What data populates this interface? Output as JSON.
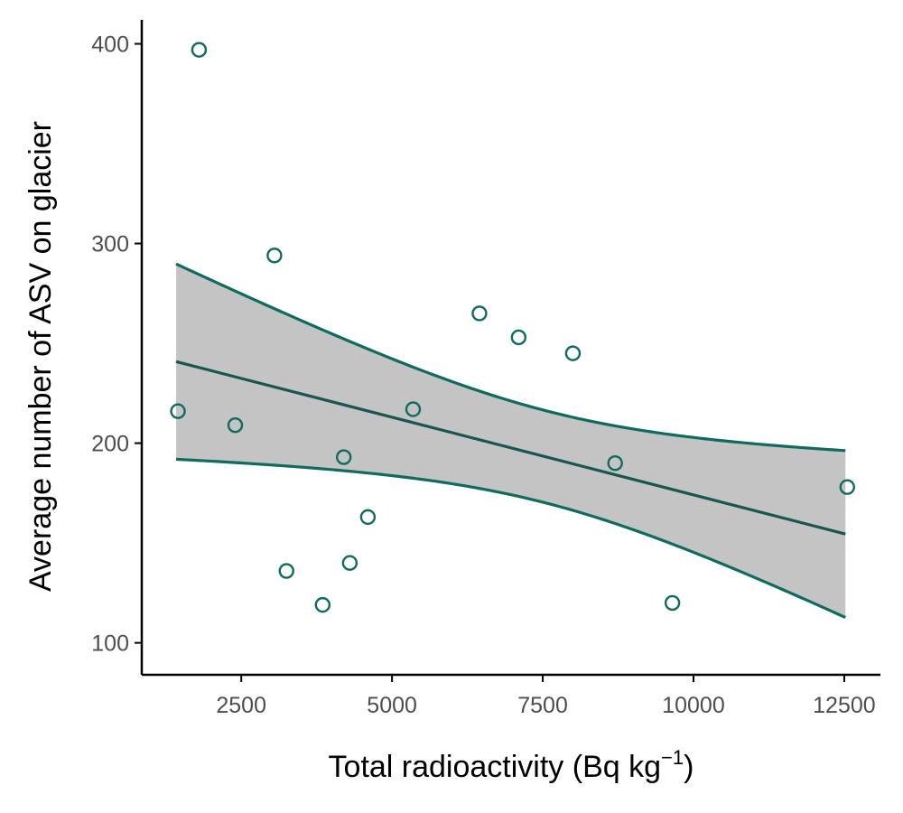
{
  "chart_data": {
    "type": "scatter",
    "xlabel_text": "Total radioactivity (Bq kg",
    "xlabel_sup": "−1",
    "xlabel_close": ")",
    "ylabel": "Average number of ASV on glacier",
    "xlim": [
      850,
      13100
    ],
    "ylim": [
      84,
      412
    ],
    "x_ticks": [
      2500,
      5000,
      7500,
      10000,
      12500
    ],
    "y_ticks": [
      100,
      200,
      300,
      400
    ],
    "x_tick_labels": [
      "2500",
      "5000",
      "7500",
      "10000",
      "12500"
    ],
    "y_tick_labels": [
      "100",
      "200",
      "300",
      "400"
    ],
    "points": [
      {
        "x": 1450,
        "y": 216
      },
      {
        "x": 1800,
        "y": 397
      },
      {
        "x": 2400,
        "y": 209
      },
      {
        "x": 3050,
        "y": 294
      },
      {
        "x": 3250,
        "y": 136
      },
      {
        "x": 3850,
        "y": 119
      },
      {
        "x": 4200,
        "y": 193
      },
      {
        "x": 4300,
        "y": 140
      },
      {
        "x": 4600,
        "y": 163
      },
      {
        "x": 5350,
        "y": 217
      },
      {
        "x": 6450,
        "y": 265
      },
      {
        "x": 7100,
        "y": 253
      },
      {
        "x": 8000,
        "y": 245
      },
      {
        "x": 8700,
        "y": 190
      },
      {
        "x": 9650,
        "y": 120
      },
      {
        "x": 12550,
        "y": 178
      }
    ],
    "fit": {
      "x_range": [
        1420,
        12520
      ],
      "intercept": 251.9,
      "slope": -0.00778,
      "mean_x": 7560,
      "se_at_mean": 23.1,
      "se_slope": 0.00702
    },
    "colors": {
      "point": "#0f6b5e",
      "band_edge": "#0f6b5e",
      "fit_line": "#1a5650",
      "band_fill": "#c4c4c4"
    },
    "grid": false,
    "legend": "none"
  }
}
